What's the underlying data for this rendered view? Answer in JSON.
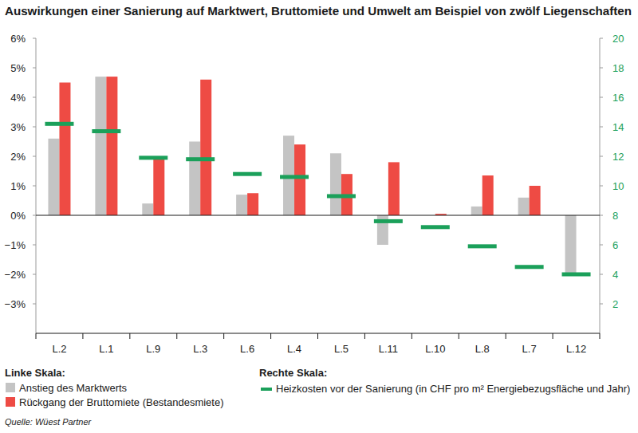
{
  "chart_data": {
    "type": "bar",
    "title": "Auswirkungen einer Sanierung auf Marktwert, Bruttomiete und Umwelt am Beispiel von zwölf Liegenschaften",
    "categories": [
      "L.2",
      "L.1",
      "L.9",
      "L.3",
      "L.6",
      "L.4",
      "L.5",
      "L.11",
      "L.10",
      "L.8",
      "L.7",
      "L.12"
    ],
    "series": [
      {
        "name": "Anstieg des Marktwerts",
        "color": "#c4c4c4",
        "axis": "y",
        "values": [
          2.6,
          4.7,
          0.4,
          2.5,
          0.7,
          2.7,
          2.1,
          -1.0,
          0,
          0.3,
          0.6,
          -2.0
        ]
      },
      {
        "name": "Rückgang der Bruttomiete (Bestandesmiete)",
        "color": "#ee4b44",
        "axis": "y",
        "values": [
          4.5,
          4.7,
          1.9,
          4.6,
          0.75,
          2.4,
          1.4,
          1.8,
          0.05,
          1.35,
          1.0,
          0
        ]
      },
      {
        "name": "Heizkosten vor der Sanierung (in CHF pro m² Energiebezugsfläche und Jahr)",
        "color": "#1ba05a",
        "axis": "y2",
        "type": "scatter",
        "marker": "dash",
        "values": [
          14.2,
          13.7,
          11.9,
          11.8,
          10.8,
          10.6,
          9.3,
          7.6,
          7.2,
          5.9,
          4.5,
          4.0
        ]
      }
    ],
    "y_label": "Linke Skala:",
    "y2_label": "Rechte Skala:",
    "ylim": [
      -4,
      6
    ],
    "yticks": [
      {
        "value": -3,
        "label": "−3%"
      },
      {
        "value": -2,
        "label": "−2%"
      },
      {
        "value": -1,
        "label": "−1%"
      },
      {
        "value": 0,
        "label": "0%"
      },
      {
        "value": 1,
        "label": "1%"
      },
      {
        "value": 2,
        "label": "2%"
      },
      {
        "value": 3,
        "label": "3%"
      },
      {
        "value": 4,
        "label": "4%"
      },
      {
        "value": 5,
        "label": "5%"
      },
      {
        "value": 6,
        "label": "6%"
      }
    ],
    "y2lim": [
      0,
      20
    ],
    "y2ticks": [
      2,
      4,
      6,
      8,
      10,
      12,
      14,
      16,
      18,
      20
    ],
    "grid": false,
    "source": "Quelle: Wüest Partner"
  }
}
